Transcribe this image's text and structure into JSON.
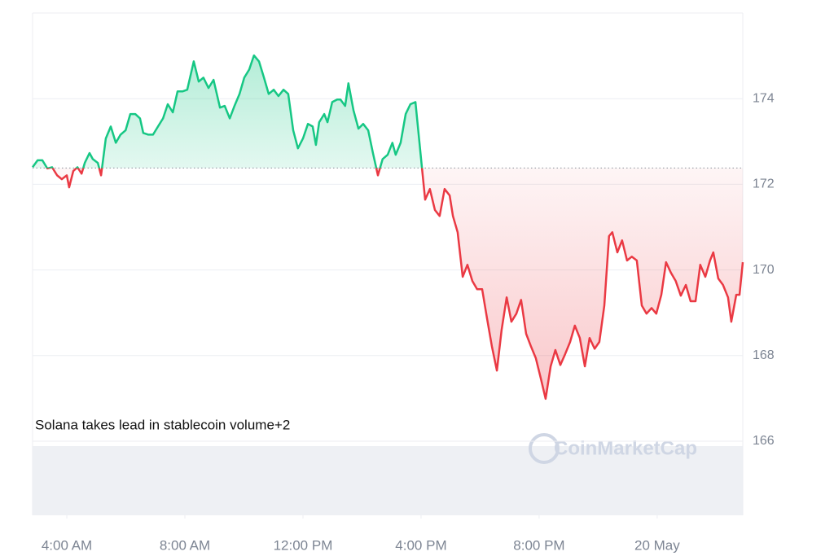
{
  "chart_data": {
    "type": "line",
    "annotation": "Solana takes lead in stablecoin volume+2",
    "watermark": "CoinMarketCap",
    "baseline": 172.38,
    "up_color": "#16c784",
    "down_color": "#ea3943",
    "grid": true,
    "xlim": [
      2.84,
      26.9
    ],
    "xticks": [
      {
        "value": 4,
        "label": "4:00 AM"
      },
      {
        "value": 8,
        "label": "8:00 AM"
      },
      {
        "value": 12,
        "label": "12:00 PM"
      },
      {
        "value": 16,
        "label": "4:00 PM"
      },
      {
        "value": 20,
        "label": "8:00 PM"
      },
      {
        "value": 24,
        "label": "20 May"
      }
    ],
    "ylim": [
      164.27,
      176.0
    ],
    "yticks": [
      166,
      168,
      170,
      172,
      174
    ],
    "x": [
      2.84,
      3.01,
      3.17,
      3.34,
      3.5,
      3.67,
      3.83,
      4.0,
      4.08,
      4.22,
      4.36,
      4.5,
      4.61,
      4.77,
      4.88,
      5.05,
      5.16,
      5.32,
      5.49,
      5.66,
      5.82,
      5.99,
      6.15,
      6.32,
      6.48,
      6.59,
      6.76,
      6.92,
      7.09,
      7.26,
      7.42,
      7.59,
      7.75,
      7.92,
      8.08,
      8.3,
      8.47,
      8.63,
      8.8,
      8.97,
      9.08,
      9.19,
      9.35,
      9.52,
      9.68,
      9.85,
      10.01,
      10.18,
      10.34,
      10.51,
      10.68,
      10.84,
      11.01,
      11.17,
      11.34,
      11.5,
      11.67,
      11.83,
      12.0,
      12.17,
      12.33,
      12.44,
      12.55,
      12.72,
      12.83,
      12.99,
      13.16,
      13.27,
      13.43,
      13.54,
      13.71,
      13.88,
      14.04,
      14.21,
      14.37,
      14.54,
      14.7,
      14.87,
      15.03,
      15.14,
      15.31,
      15.48,
      15.64,
      15.81,
      16.03,
      16.14,
      16.3,
      16.47,
      16.63,
      16.8,
      16.97,
      17.08,
      17.24,
      17.41,
      17.57,
      17.74,
      17.9,
      18.07,
      18.23,
      18.4,
      18.57,
      18.73,
      18.9,
      19.06,
      19.23,
      19.39,
      19.56,
      19.72,
      19.89,
      20.06,
      20.22,
      20.39,
      20.55,
      20.72,
      20.88,
      21.05,
      21.21,
      21.38,
      21.55,
      21.71,
      21.88,
      22.04,
      22.21,
      22.37,
      22.48,
      22.65,
      22.81,
      22.98,
      23.14,
      23.31,
      23.48,
      23.64,
      23.81,
      23.97,
      24.14,
      24.3,
      24.47,
      24.63,
      24.8,
      24.97,
      25.13,
      25.3,
      25.46,
      25.63,
      25.79,
      25.9,
      26.07,
      26.23,
      26.4,
      26.51,
      26.68,
      26.79,
      26.9
    ],
    "values": [
      172.4,
      172.56,
      172.56,
      172.37,
      172.4,
      172.21,
      172.12,
      172.21,
      171.93,
      172.31,
      172.4,
      172.25,
      172.5,
      172.73,
      172.59,
      172.5,
      172.21,
      173.07,
      173.35,
      172.97,
      173.16,
      173.26,
      173.64,
      173.64,
      173.54,
      173.2,
      173.16,
      173.16,
      173.35,
      173.54,
      173.87,
      173.68,
      174.17,
      174.17,
      174.21,
      174.87,
      174.4,
      174.49,
      174.25,
      174.44,
      174.11,
      173.79,
      173.83,
      173.54,
      173.83,
      174.11,
      174.49,
      174.68,
      175.01,
      174.87,
      174.49,
      174.11,
      174.21,
      174.06,
      174.21,
      174.11,
      173.26,
      172.84,
      173.07,
      173.41,
      173.35,
      172.92,
      173.45,
      173.64,
      173.45,
      173.92,
      173.98,
      173.98,
      173.83,
      174.36,
      173.73,
      173.3,
      173.41,
      173.26,
      172.73,
      172.21,
      172.59,
      172.69,
      172.97,
      172.69,
      172.97,
      173.64,
      173.87,
      173.92,
      172.4,
      171.64,
      171.89,
      171.4,
      171.26,
      171.89,
      171.74,
      171.26,
      170.88,
      169.84,
      170.12,
      169.74,
      169.55,
      169.55,
      168.89,
      168.22,
      167.65,
      168.6,
      169.36,
      168.79,
      168.98,
      169.3,
      168.51,
      168.22,
      167.94,
      167.46,
      166.99,
      167.75,
      168.13,
      167.78,
      168.03,
      168.32,
      168.7,
      168.41,
      167.75,
      168.41,
      168.16,
      168.32,
      169.17,
      170.79,
      170.88,
      170.41,
      170.69,
      170.22,
      170.31,
      170.22,
      169.17,
      168.98,
      169.11,
      168.98,
      169.42,
      170.18,
      169.93,
      169.74,
      169.4,
      169.65,
      169.27,
      169.27,
      170.12,
      169.84,
      170.22,
      170.41,
      169.8,
      169.65,
      169.36,
      168.79,
      169.42,
      169.42,
      170.18
    ]
  }
}
